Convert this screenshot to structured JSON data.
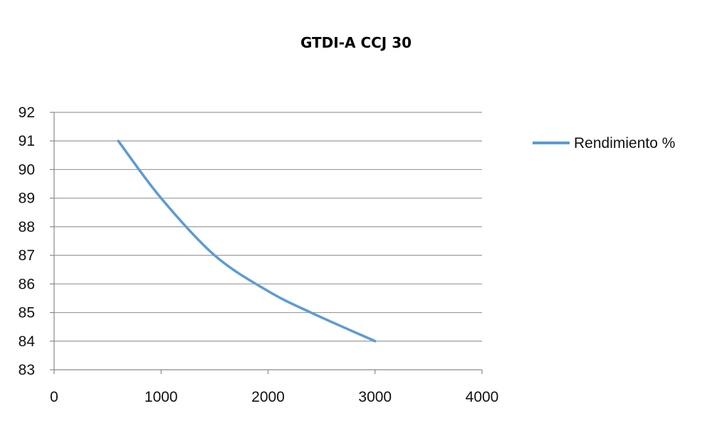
{
  "chart_data": {
    "type": "line",
    "title": "GTDI-A CCJ 30",
    "xlabel": "",
    "ylabel": "",
    "xlim": [
      0,
      4000
    ],
    "ylim": [
      83,
      92
    ],
    "x_ticks": [
      0,
      1000,
      2000,
      3000,
      4000
    ],
    "y_ticks": [
      83,
      84,
      85,
      86,
      87,
      88,
      89,
      90,
      91,
      92
    ],
    "grid": "horizontal",
    "legend_position": "right",
    "series": [
      {
        "name": "Rendimiento %",
        "color": "#5b9bd5",
        "x": [
          600,
          1000,
          1500,
          2000,
          2400,
          3000
        ],
        "y": [
          91,
          89,
          87,
          85.75,
          85,
          84
        ]
      }
    ]
  }
}
